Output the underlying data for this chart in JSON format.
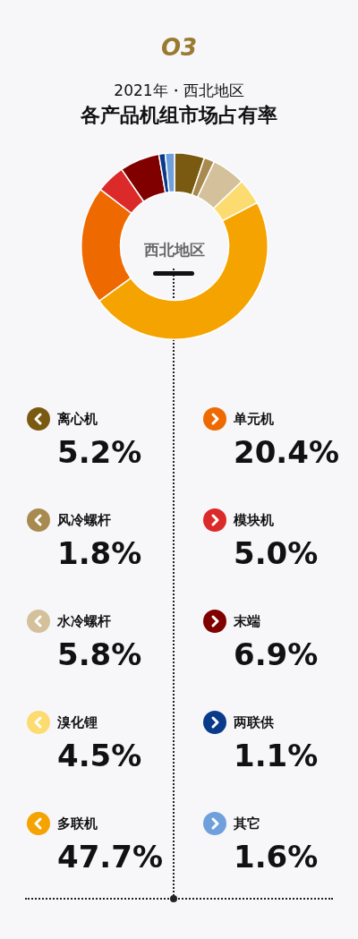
{
  "chart_data": {
    "type": "donut",
    "title": "各产品机组市场占有率",
    "subtitle": "2021年・西北地区",
    "annotations": [
      "O3",
      "西北地区"
    ],
    "categories": [
      "离心机",
      "风冷螺杆",
      "水冷螺杆",
      "溴化锂",
      "多联机",
      "单元机",
      "模块机",
      "末端",
      "两联供",
      "其它"
    ],
    "values": [
      5.2,
      1.8,
      5.8,
      4.5,
      47.7,
      20.4,
      5.0,
      6.9,
      1.1,
      1.6
    ],
    "value_labels": [
      "5.2%",
      "1.8%",
      "5.8%",
      "4.5%",
      "47.7%",
      "20.4%",
      "5.0%",
      "6.9%",
      "1.1%",
      "1.6%"
    ],
    "colors": [
      "#7a5a10",
      "#a88a50",
      "#d4c09a",
      "#fcdc70",
      "#f5a300",
      "#ee6a00",
      "#dc2a2a",
      "#800000",
      "#0a3a8a",
      "#6fa0dc"
    ],
    "legend": "bottom"
  }
}
